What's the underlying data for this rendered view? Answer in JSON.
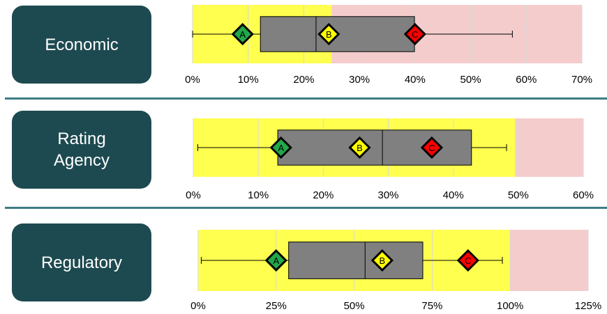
{
  "panels": [
    {
      "label": "Economic"
    },
    {
      "label": "Rating\nAgency"
    },
    {
      "label": "Regulatory"
    }
  ],
  "colors": {
    "label_bg": "#1d4a50",
    "divider": "#3e7c84",
    "zone_yellow": "#ffff4f",
    "zone_pink": "#f5cccc",
    "box_fill": "#808080",
    "marker_A": "#22a84a",
    "marker_B": "#ffff00",
    "marker_C": "#ff0000"
  },
  "chart_data": [
    {
      "type": "box",
      "title": "Economic",
      "xlim": [
        0,
        0.7
      ],
      "ticks": [
        0,
        0.1,
        0.2,
        0.3,
        0.4,
        0.5,
        0.6,
        0.7
      ],
      "tick_labels": [
        "0%",
        "10%",
        "20%",
        "30%",
        "40%",
        "50%",
        "60%",
        "70%"
      ],
      "zones": [
        {
          "from": 0,
          "to": 0.25,
          "color": "yellow"
        },
        {
          "from": 0.25,
          "to": 0.7,
          "color": "pink"
        }
      ],
      "box": {
        "min": 0.0,
        "q1": 0.122,
        "median": 0.222,
        "q3": 0.399,
        "max": 0.575
      },
      "markers": [
        {
          "label": "A",
          "value": 0.09
        },
        {
          "label": "B",
          "value": 0.245
        },
        {
          "label": "C",
          "value": 0.4
        }
      ]
    },
    {
      "type": "box",
      "title": "Rating Agency",
      "xlim": [
        0,
        0.6
      ],
      "ticks": [
        0,
        0.1,
        0.2,
        0.3,
        0.4,
        0.5,
        0.6
      ],
      "tick_labels": [
        "0%",
        "10%",
        "20%",
        "30%",
        "40%",
        "50%",
        "60%"
      ],
      "zones": [
        {
          "from": 0,
          "to": 0.495,
          "color": "yellow"
        },
        {
          "from": 0.495,
          "to": 0.6,
          "color": "pink"
        }
      ],
      "box": {
        "min": 0.007,
        "q1": 0.13,
        "median": 0.291,
        "q3": 0.428,
        "max": 0.482
      },
      "markers": [
        {
          "label": "A",
          "value": 0.135
        },
        {
          "label": "B",
          "value": 0.256
        },
        {
          "label": "C",
          "value": 0.367
        }
      ]
    },
    {
      "type": "box",
      "title": "Regulatory",
      "xlim": [
        0,
        1.25
      ],
      "ticks": [
        0,
        0.25,
        0.5,
        0.75,
        1.0,
        1.25
      ],
      "tick_labels": [
        "0%",
        "25%",
        "50%",
        "75%",
        "100%",
        "125%"
      ],
      "zones": [
        {
          "from": 0,
          "to": 1.0,
          "color": "yellow"
        },
        {
          "from": 1.0,
          "to": 1.25,
          "color": "pink"
        }
      ],
      "box": {
        "min": 0.01,
        "q1": 0.29,
        "median": 0.535,
        "q3": 0.72,
        "max": 0.975
      },
      "markers": [
        {
          "label": "A",
          "value": 0.25
        },
        {
          "label": "B",
          "value": 0.59
        },
        {
          "label": "C",
          "value": 0.865
        }
      ]
    }
  ]
}
